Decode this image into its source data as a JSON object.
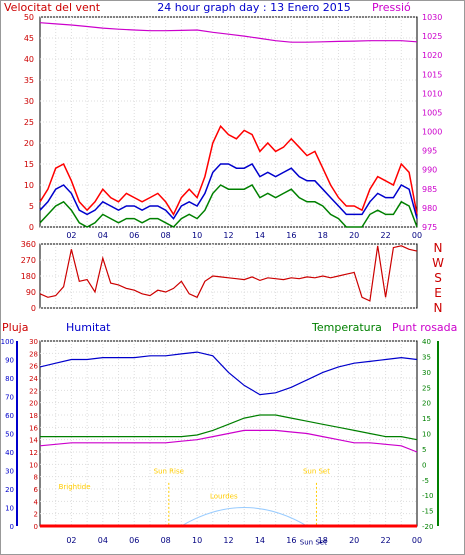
{
  "chart_data": [
    {
      "id": "wind_pressure",
      "type": "line",
      "title": "24 hour graph day : 13 Enero 2015",
      "left_axis_label": "Velocitat del vent",
      "right_axis_label": "Pressió",
      "x_ticks": [
        "02",
        "04",
        "06",
        "08",
        "10",
        "12",
        "14",
        "16",
        "18",
        "20",
        "22",
        "00"
      ],
      "left_ylim": [
        0,
        50
      ],
      "left_y_ticks": [
        0,
        5,
        10,
        15,
        20,
        25,
        30,
        35,
        40,
        45,
        50
      ],
      "right_ylim": [
        975,
        1030
      ],
      "right_y_ticks": [
        975,
        980,
        985,
        990,
        995,
        1000,
        1005,
        1010,
        1015,
        1020,
        1025,
        1030
      ],
      "grid": true,
      "colors": {
        "gust": "#ff0000",
        "wind": "#0000cc",
        "wind_min": "#008000",
        "pressure": "#cc00cc",
        "left_axis": "#cc0000",
        "right_axis": "#cc00cc"
      },
      "series": [
        {
          "key": "pressure",
          "axis": "right",
          "x": [
            0,
            1,
            2,
            3,
            4,
            5,
            6,
            7,
            8,
            9,
            10,
            11,
            12,
            13,
            14,
            15,
            16,
            17,
            18,
            19,
            20,
            21,
            22,
            23,
            24
          ],
          "values": [
            1028.5,
            1028.2,
            1027.9,
            1027.5,
            1027.1,
            1026.8,
            1026.6,
            1026.4,
            1026.4,
            1026.5,
            1026.6,
            1026.0,
            1025.5,
            1025.0,
            1024.4,
            1023.8,
            1023.4,
            1023.4,
            1023.5,
            1023.6,
            1023.7,
            1023.8,
            1023.8,
            1023.8,
            1023.5
          ]
        },
        {
          "key": "gust",
          "axis": "left",
          "x": [
            0,
            0.5,
            1,
            1.5,
            2,
            2.5,
            3,
            3.5,
            4,
            4.5,
            5,
            5.5,
            6,
            6.5,
            7,
            7.5,
            8,
            8.5,
            9,
            9.5,
            10,
            10.5,
            11,
            11.5,
            12,
            12.5,
            13,
            13.5,
            14,
            14.5,
            15,
            15.5,
            16,
            16.5,
            17,
            17.5,
            18,
            18.5,
            19,
            19.5,
            20,
            20.5,
            21,
            21.5,
            22,
            22.5,
            23,
            23.5,
            24
          ],
          "values": [
            6,
            9,
            14,
            15,
            11,
            6,
            4,
            6,
            9,
            7,
            6,
            8,
            7,
            6,
            7,
            8,
            6,
            3,
            7,
            9,
            7,
            12,
            20,
            24,
            22,
            21,
            23,
            22,
            18,
            20,
            18,
            19,
            21,
            19,
            17,
            18,
            14,
            10,
            7,
            5,
            5,
            4,
            9,
            12,
            11,
            10,
            15,
            13,
            3
          ]
        },
        {
          "key": "wind",
          "axis": "left",
          "x": [
            0,
            0.5,
            1,
            1.5,
            2,
            2.5,
            3,
            3.5,
            4,
            4.5,
            5,
            5.5,
            6,
            6.5,
            7,
            7.5,
            8,
            8.5,
            9,
            9.5,
            10,
            10.5,
            11,
            11.5,
            12,
            12.5,
            13,
            13.5,
            14,
            14.5,
            15,
            15.5,
            16,
            16.5,
            17,
            17.5,
            18,
            18.5,
            19,
            19.5,
            20,
            20.5,
            21,
            21.5,
            22,
            22.5,
            23,
            23.5,
            24
          ],
          "values": [
            4,
            6,
            9,
            10,
            8,
            4,
            3,
            4,
            6,
            5,
            4,
            5,
            5,
            4,
            5,
            5,
            4,
            2,
            5,
            6,
            5,
            8,
            13,
            15,
            15,
            14,
            14,
            15,
            12,
            13,
            12,
            13,
            14,
            12,
            11,
            11,
            9,
            7,
            5,
            3,
            3,
            3,
            6,
            8,
            7,
            7,
            10,
            9,
            2
          ]
        },
        {
          "key": "wind_min",
          "axis": "left",
          "x": [
            0,
            0.5,
            1,
            1.5,
            2,
            2.5,
            3,
            3.5,
            4,
            4.5,
            5,
            5.5,
            6,
            6.5,
            7,
            7.5,
            8,
            8.5,
            9,
            9.5,
            10,
            10.5,
            11,
            11.5,
            12,
            12.5,
            13,
            13.5,
            14,
            14.5,
            15,
            15.5,
            16,
            16.5,
            17,
            17.5,
            18,
            18.5,
            19,
            19.5,
            20,
            20.5,
            21,
            21.5,
            22,
            22.5,
            23,
            23.5,
            24
          ],
          "values": [
            1,
            3,
            5,
            6,
            4,
            1,
            0,
            1,
            3,
            2,
            1,
            2,
            2,
            1,
            2,
            2,
            1,
            0,
            2,
            3,
            2,
            4,
            8,
            10,
            9,
            9,
            9,
            10,
            7,
            8,
            7,
            8,
            9,
            7,
            6,
            6,
            5,
            3,
            2,
            0,
            0,
            0,
            3,
            4,
            3,
            3,
            6,
            5,
            0
          ]
        }
      ]
    },
    {
      "id": "direction",
      "type": "line",
      "ylim": [
        0,
        360
      ],
      "y_ticks": [
        0,
        90,
        180,
        270,
        360
      ],
      "right_labels": [
        "N",
        "W",
        "S",
        "E",
        "N"
      ],
      "x_ticks": [
        "02",
        "04",
        "06",
        "08",
        "10",
        "12",
        "14",
        "16",
        "18",
        "20",
        "22",
        "00"
      ],
      "grid": true,
      "colors": {
        "line": "#cc0000",
        "axis": "#cc0000"
      },
      "x": [
        0,
        0.5,
        1,
        1.5,
        2,
        2.5,
        3,
        3.5,
        4,
        4.5,
        5,
        5.5,
        6,
        6.5,
        7,
        7.5,
        8,
        8.5,
        9,
        9.5,
        10,
        10.5,
        11,
        11.5,
        12,
        12.5,
        13,
        13.5,
        14,
        14.5,
        15,
        15.5,
        16,
        16.5,
        17,
        17.5,
        18,
        18.5,
        19,
        19.5,
        20,
        20.5,
        21,
        21.5,
        22,
        22.5,
        23,
        23.5,
        24
      ],
      "values": [
        80,
        60,
        70,
        120,
        330,
        150,
        160,
        90,
        280,
        140,
        130,
        110,
        100,
        80,
        70,
        100,
        90,
        110,
        150,
        80,
        60,
        150,
        180,
        175,
        170,
        165,
        160,
        175,
        155,
        170,
        165,
        160,
        170,
        165,
        175,
        170,
        180,
        170,
        180,
        190,
        200,
        60,
        40,
        350,
        60,
        340,
        350,
        330,
        320
      ]
    },
    {
      "id": "rain_hum_temp",
      "type": "line",
      "left_label_rain": "Pluja",
      "left_label_hum": "Humitat",
      "right_label_temp": "Temperatura",
      "right_label_dew": "Punt rosada",
      "rain_ylim": [
        0,
        30
      ],
      "rain_ticks": [
        0,
        2,
        4,
        6,
        8,
        10,
        12,
        14,
        16,
        18,
        20,
        22,
        24,
        26,
        28,
        30
      ],
      "hum_ylim": [
        0,
        100
      ],
      "hum_ticks": [
        0,
        10,
        20,
        30,
        40,
        50,
        60,
        70,
        80,
        90,
        100
      ],
      "temp_ylim": [
        -20,
        40
      ],
      "temp_ticks": [
        -20,
        -15,
        -10,
        -5,
        0,
        5,
        10,
        15,
        20,
        25,
        30,
        35,
        40
      ],
      "x_ticks": [
        "02",
        "04",
        "06",
        "08",
        "10",
        "12",
        "14",
        "16",
        "18",
        "20",
        "22",
        "00"
      ],
      "annotations": [
        {
          "label": "Brightide",
          "x": 2.2,
          "y_rain": 6
        },
        {
          "label": "Sun Rise",
          "x": 8.2,
          "y_rain": 8.5
        },
        {
          "label": "Lourdes",
          "x": 11.7,
          "y_rain": 4.5
        },
        {
          "label": "Sun Set",
          "x": 17.6,
          "y_rain": 8.5
        },
        {
          "label": "Sun Set",
          "x": 17.4,
          "y_rain": -3
        }
      ],
      "colors": {
        "rain": "#ff0000",
        "humidity": "#0000cc",
        "temperature": "#008000",
        "dew_point": "#cc00cc",
        "sun_arc": "#99ccff",
        "annot": "#ffcc00",
        "rain_axis": "#cc0000",
        "hum_axis": "#0000cc",
        "temp_axis": "#008000"
      },
      "grid": true,
      "series": [
        {
          "key": "humidity",
          "axis": "hum",
          "x": [
            0,
            1,
            2,
            3,
            4,
            5,
            6,
            7,
            8,
            9,
            10,
            11,
            12,
            13,
            14,
            15,
            16,
            17,
            18,
            19,
            20,
            21,
            22,
            23,
            24
          ],
          "values": [
            86,
            88,
            90,
            90,
            91,
            91,
            91,
            92,
            92,
            93,
            94,
            92,
            83,
            76,
            71,
            72,
            75,
            79,
            83,
            86,
            88,
            89,
            90,
            91,
            90
          ]
        },
        {
          "key": "temperature",
          "axis": "temp",
          "x": [
            0,
            1,
            2,
            3,
            4,
            5,
            6,
            7,
            8,
            9,
            10,
            11,
            12,
            13,
            14,
            15,
            16,
            17,
            18,
            19,
            20,
            21,
            22,
            23,
            24
          ],
          "values": [
            9,
            9,
            9,
            9,
            9,
            9,
            9,
            9,
            9,
            9,
            9.5,
            11,
            13,
            15,
            16,
            16,
            15,
            14,
            13,
            12,
            11,
            10,
            9,
            9,
            8
          ]
        },
        {
          "key": "dew_point",
          "axis": "temp",
          "x": [
            0,
            1,
            2,
            3,
            4,
            5,
            6,
            7,
            8,
            9,
            10,
            11,
            12,
            13,
            14,
            15,
            16,
            17,
            18,
            19,
            20,
            21,
            22,
            23,
            24
          ],
          "values": [
            6,
            6.5,
            7,
            7,
            7,
            7,
            7,
            7,
            7,
            7.5,
            8,
            9,
            10,
            11,
            11,
            11,
            10.5,
            10,
            9,
            8,
            7,
            7,
            6.5,
            6,
            4
          ]
        },
        {
          "key": "rain",
          "axis": "rain",
          "x": [
            0,
            24
          ],
          "values": [
            0,
            0
          ]
        }
      ]
    }
  ]
}
